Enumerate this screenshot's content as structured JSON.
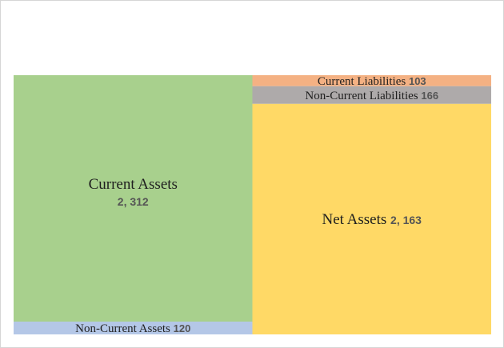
{
  "chart_data": {
    "type": "treemap",
    "title": "",
    "groups": [
      {
        "name": "assets",
        "items": [
          {
            "label": "Current Assets",
            "value": 2312,
            "value_text": "2, 312",
            "color": "#a8d08d"
          },
          {
            "label": "Non-Current Assets",
            "value": 120,
            "value_text": "120",
            "color": "#b4c7e7"
          }
        ]
      },
      {
        "name": "liabilities-and-equity",
        "items": [
          {
            "label": "Current Liabilities",
            "value": 103,
            "value_text": "103",
            "color": "#f4b183"
          },
          {
            "label": "Non-Current Liabilities",
            "value": 166,
            "value_text": "166",
            "color": "#aeaaaa"
          },
          {
            "label": "Net Assets",
            "value": 2163,
            "value_text": "2, 163",
            "color": "#ffd966"
          }
        ]
      }
    ]
  }
}
